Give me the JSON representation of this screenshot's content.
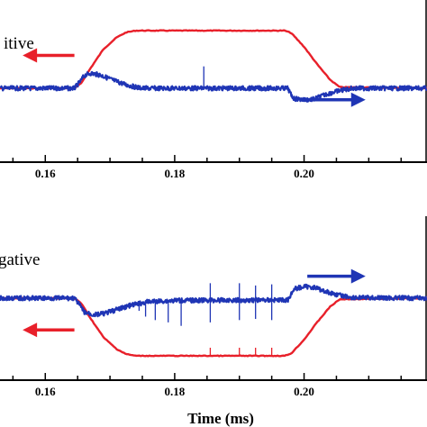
{
  "colors": {
    "red": "#e8202a",
    "blue": "#1f35b5",
    "axis": "#000000"
  },
  "chart_data": [
    {
      "type": "line",
      "panel_label": "itive",
      "xlabel": "",
      "xlim": [
        0.153,
        0.219
      ],
      "xticks": [
        0.16,
        0.18,
        0.2
      ],
      "xtick_labels": [
        "0.16",
        "0.18",
        "0.20"
      ],
      "grid": false,
      "series": [
        {
          "color": "red",
          "x": [
            0.153,
            0.1645,
            0.1655,
            0.167,
            0.169,
            0.171,
            0.1725,
            0.174,
            0.197,
            0.198,
            0.2,
            0.202,
            0.204,
            0.2055,
            0.219
          ],
          "y": [
            0.0,
            0.0,
            0.08,
            0.35,
            0.68,
            0.88,
            0.97,
            1.0,
            1.0,
            0.96,
            0.72,
            0.42,
            0.15,
            0.02,
            0.0
          ]
        },
        {
          "color": "blue",
          "x": [
            0.153,
            0.1645,
            0.1655,
            0.166,
            0.167,
            0.1685,
            0.1705,
            0.1725,
            0.174,
            0.175,
            0.1975,
            0.198,
            0.1985,
            0.2,
            0.2015,
            0.2035,
            0.2055,
            0.2075,
            0.219
          ],
          "y": [
            0.0,
            0.0,
            0.13,
            0.22,
            0.26,
            0.23,
            0.14,
            0.06,
            0.02,
            0.0,
            0.0,
            -0.12,
            -0.18,
            -0.2,
            -0.19,
            -0.1,
            -0.04,
            0.0,
            0.0
          ]
        }
      ],
      "spikes": [
        {
          "color": "blue",
          "x": 0.1845,
          "y": 0.38
        }
      ],
      "arrows": [
        {
          "color": "red",
          "direction": "left",
          "x": [
            0.1565,
            0.1645
          ],
          "y": 0.57
        },
        {
          "color": "blue",
          "direction": "right",
          "x": [
            0.2005,
            0.2095
          ],
          "y": -0.2
        }
      ]
    },
    {
      "type": "line",
      "panel_label": "gative",
      "xlabel": "Time (ms)",
      "xlim": [
        0.153,
        0.219
      ],
      "xticks": [
        0.16,
        0.18,
        0.2
      ],
      "xtick_labels": [
        "0.16",
        "0.18",
        "0.20"
      ],
      "grid": false,
      "series": [
        {
          "color": "red",
          "x": [
            0.153,
            0.1645,
            0.1655,
            0.167,
            0.169,
            0.171,
            0.1725,
            0.174,
            0.197,
            0.198,
            0.2,
            0.202,
            0.204,
            0.2055,
            0.219
          ],
          "y": [
            0.0,
            0.0,
            -0.08,
            -0.35,
            -0.68,
            -0.88,
            -0.97,
            -1.0,
            -1.0,
            -0.96,
            -0.72,
            -0.42,
            -0.15,
            -0.02,
            0.0
          ]
        },
        {
          "color": "blue",
          "x": [
            0.153,
            0.1645,
            0.1655,
            0.166,
            0.1675,
            0.169,
            0.171,
            0.173,
            0.176,
            0.18,
            0.1975,
            0.198,
            0.1985,
            0.2,
            0.2015,
            0.2035,
            0.2055,
            0.2075,
            0.219
          ],
          "y": [
            0.0,
            0.0,
            -0.15,
            -0.24,
            -0.29,
            -0.27,
            -0.2,
            -0.13,
            -0.06,
            -0.04,
            -0.03,
            0.08,
            0.16,
            0.2,
            0.19,
            0.11,
            0.05,
            0.01,
            0.0
          ]
        }
      ],
      "spikes": [
        {
          "color": "blue",
          "x": 0.1745,
          "y": -0.22
        },
        {
          "color": "blue",
          "x": 0.1755,
          "y": -0.32
        },
        {
          "color": "blue",
          "x": 0.177,
          "y": -0.38
        },
        {
          "color": "blue",
          "x": 0.179,
          "y": -0.42
        },
        {
          "color": "blue",
          "x": 0.181,
          "y": -0.48
        },
        {
          "color": "blue",
          "x": 0.1855,
          "y": 0.26
        },
        {
          "color": "blue",
          "x": 0.1855,
          "y": -0.42
        },
        {
          "color": "blue",
          "x": 0.19,
          "y": 0.26
        },
        {
          "color": "blue",
          "x": 0.19,
          "y": -0.38
        },
        {
          "color": "blue",
          "x": 0.1925,
          "y": 0.22
        },
        {
          "color": "blue",
          "x": 0.1925,
          "y": -0.36
        },
        {
          "color": "blue",
          "x": 0.195,
          "y": 0.24
        },
        {
          "color": "blue",
          "x": 0.195,
          "y": -0.38
        }
      ],
      "arrows": [
        {
          "color": "red",
          "direction": "left",
          "x": [
            0.1565,
            0.1645
          ],
          "y": -0.55
        },
        {
          "color": "blue",
          "direction": "right",
          "x": [
            0.2005,
            0.2095
          ],
          "y": 0.38
        }
      ]
    }
  ]
}
